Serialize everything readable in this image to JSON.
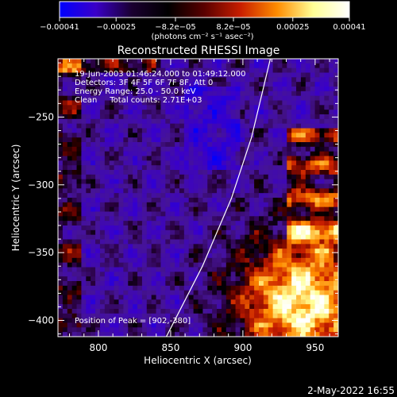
{
  "chart_data": {
    "type": "heatmap",
    "title": "Reconstructed RHESSI Image",
    "xlabel": "Heliocentric X (arcsec)",
    "ylabel": "Heliocentric Y (arcsec)",
    "xlim": [
      772,
      966
    ],
    "ylim": [
      -412,
      -207
    ],
    "x_ticks": [
      800,
      850,
      900,
      950
    ],
    "y_ticks": [
      -250,
      -300,
      -350,
      -400
    ],
    "x_tick_labels": [
      "800",
      "850",
      "900",
      "950"
    ],
    "y_tick_labels": [
      "−250",
      "−300",
      "−350",
      "−400"
    ],
    "colorbar": {
      "vmin": -0.00041,
      "vmax": 0.00041,
      "ticks": [
        -0.00041,
        -0.00025,
        -8.2e-05,
        8.2e-05,
        0.00025,
        0.00041
      ],
      "tick_labels": [
        "−0.00041",
        "−0.00025",
        "−8.2e−05",
        "8.2e−05",
        "0.00025",
        "0.00041"
      ],
      "units": "(photons cm⁻² s⁻¹ asec⁻²)",
      "colors": [
        "#0000ff",
        "#3a00c8",
        "#1a0030",
        "#000000",
        "#5a0000",
        "#c81e00",
        "#ff8c00",
        "#ffff96",
        "#ffffff"
      ]
    },
    "annotations": [
      "19-Jun-2003 01:46:24.000 to 01:49:12.000",
      "Detectors: 3F 4F 5F 6F 7F 8F, Att 0",
      "Energy Range: 25.0 - 50.0 keV",
      "Clean     Total counts: 2.71E+03"
    ],
    "peak_label": "Position of Peak = [902,-380]",
    "peak_position": [
      902,
      -380
    ],
    "limb_curve": [
      [
        847,
        -412
      ],
      [
        872,
        -360
      ],
      [
        892,
        -310
      ],
      [
        906,
        -265
      ],
      [
        919,
        -207
      ]
    ],
    "image_summary": [
      {
        "region": "east / center (X 772-900, Y -380 to -207)",
        "level": "near zero / slightly negative (purple-blue)"
      },
      {
        "region": "south-west (X 880-966, Y -412 to -330)",
        "level": "strong positive emission (orange-yellow-white)"
      },
      {
        "region": "west edge (X 920-966, Y -320 to -207)",
        "level": "moderate positive (red-orange)"
      },
      {
        "region": "left edge (X 772-800)",
        "level": "moderate positive (red-orange)"
      }
    ]
  },
  "footer": {
    "date": "2-May-2022 16:55"
  }
}
